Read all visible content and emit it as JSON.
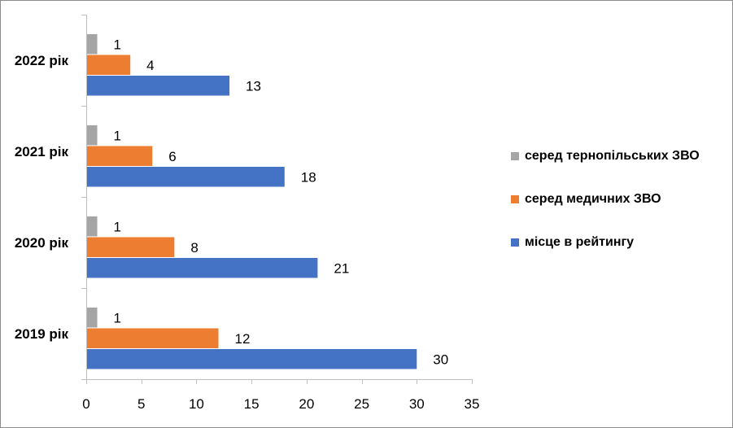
{
  "chart_data": {
    "type": "bar",
    "orientation": "horizontal",
    "categories": [
      "2022 рік",
      "2021 рік",
      "2020 рік",
      "2019 рік"
    ],
    "series": [
      {
        "name": "серед тернопільських ЗВО",
        "color": "#a5a5a5",
        "values": [
          1,
          1,
          1,
          1
        ]
      },
      {
        "name": "серед медичних ЗВО",
        "color": "#ed7d31",
        "values": [
          4,
          6,
          8,
          12
        ]
      },
      {
        "name": "місце в рейтингу",
        "color": "#4472c4",
        "values": [
          13,
          18,
          21,
          30
        ]
      }
    ],
    "xlim": [
      0,
      35
    ],
    "xticks": [
      0,
      5,
      10,
      15,
      20,
      25,
      30,
      35
    ],
    "grid": false,
    "legend_position": "right",
    "data_labels": true
  }
}
